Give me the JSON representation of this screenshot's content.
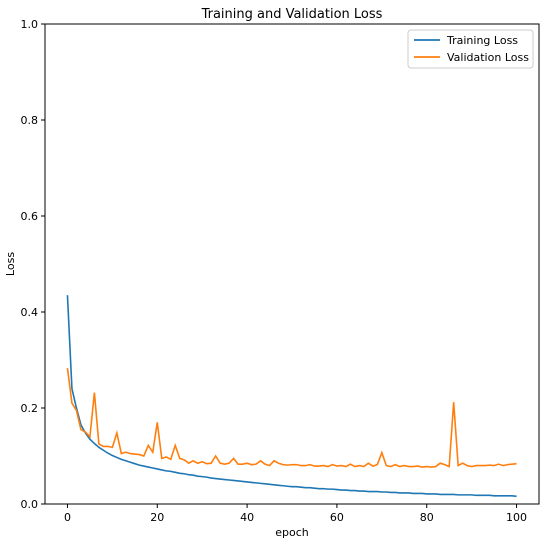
{
  "chart_data": {
    "type": "line",
    "title": "Training and Validation Loss",
    "xlabel": "epoch",
    "ylabel": "Loss",
    "xlim": [
      -5,
      105
    ],
    "ylim": [
      0,
      1.0
    ],
    "xticks": [
      0,
      20,
      40,
      60,
      80,
      100
    ],
    "yticks": [
      0.0,
      0.2,
      0.4,
      0.6,
      0.8,
      1.0
    ],
    "ytick_labels": [
      "0.0",
      "0.2",
      "0.4",
      "0.6",
      "0.8",
      "1.0"
    ],
    "grid": false,
    "legend_position": "top-right",
    "x": [
      0,
      1,
      2,
      3,
      4,
      5,
      6,
      7,
      8,
      9,
      10,
      11,
      12,
      13,
      14,
      15,
      16,
      17,
      18,
      19,
      20,
      21,
      22,
      23,
      24,
      25,
      26,
      27,
      28,
      29,
      30,
      31,
      32,
      33,
      34,
      35,
      36,
      37,
      38,
      39,
      40,
      41,
      42,
      43,
      44,
      45,
      46,
      47,
      48,
      49,
      50,
      51,
      52,
      53,
      54,
      55,
      56,
      57,
      58,
      59,
      60,
      61,
      62,
      63,
      64,
      65,
      66,
      67,
      68,
      69,
      70,
      71,
      72,
      73,
      74,
      75,
      76,
      77,
      78,
      79,
      80,
      81,
      82,
      83,
      84,
      85,
      86,
      87,
      88,
      89,
      90,
      91,
      92,
      93,
      94,
      95,
      96,
      97,
      98,
      99,
      100
    ],
    "series": [
      {
        "name": "Training Loss",
        "color": "#1f77b4",
        "values": [
          0.435,
          0.24,
          0.2,
          0.165,
          0.148,
          0.135,
          0.126,
          0.118,
          0.112,
          0.106,
          0.101,
          0.097,
          0.093,
          0.09,
          0.087,
          0.084,
          0.081,
          0.079,
          0.077,
          0.075,
          0.073,
          0.071,
          0.069,
          0.068,
          0.066,
          0.064,
          0.063,
          0.061,
          0.06,
          0.058,
          0.057,
          0.056,
          0.054,
          0.053,
          0.052,
          0.051,
          0.05,
          0.049,
          0.048,
          0.047,
          0.046,
          0.045,
          0.044,
          0.043,
          0.042,
          0.041,
          0.04,
          0.039,
          0.038,
          0.037,
          0.036,
          0.036,
          0.035,
          0.034,
          0.034,
          0.033,
          0.032,
          0.032,
          0.031,
          0.031,
          0.03,
          0.029,
          0.029,
          0.028,
          0.028,
          0.027,
          0.027,
          0.026,
          0.026,
          0.026,
          0.025,
          0.025,
          0.024,
          0.024,
          0.023,
          0.023,
          0.023,
          0.022,
          0.022,
          0.022,
          0.021,
          0.021,
          0.021,
          0.02,
          0.02,
          0.02,
          0.02,
          0.019,
          0.019,
          0.019,
          0.019,
          0.018,
          0.018,
          0.018,
          0.018,
          0.017,
          0.017,
          0.017,
          0.017,
          0.017,
          0.016
        ]
      },
      {
        "name": "Validation Loss",
        "color": "#ff7f0e",
        "values": [
          0.283,
          0.21,
          0.195,
          0.155,
          0.15,
          0.14,
          0.232,
          0.125,
          0.12,
          0.12,
          0.118,
          0.148,
          0.105,
          0.108,
          0.105,
          0.104,
          0.103,
          0.1,
          0.122,
          0.108,
          0.17,
          0.095,
          0.098,
          0.093,
          0.122,
          0.095,
          0.092,
          0.085,
          0.09,
          0.085,
          0.088,
          0.084,
          0.085,
          0.1,
          0.085,
          0.083,
          0.085,
          0.095,
          0.083,
          0.083,
          0.085,
          0.082,
          0.083,
          0.09,
          0.083,
          0.08,
          0.09,
          0.085,
          0.082,
          0.081,
          0.082,
          0.082,
          0.08,
          0.08,
          0.082,
          0.079,
          0.079,
          0.08,
          0.078,
          0.082,
          0.079,
          0.08,
          0.078,
          0.083,
          0.078,
          0.08,
          0.078,
          0.085,
          0.079,
          0.082,
          0.107,
          0.08,
          0.078,
          0.082,
          0.078,
          0.08,
          0.078,
          0.078,
          0.079,
          0.077,
          0.078,
          0.077,
          0.078,
          0.085,
          0.082,
          0.078,
          0.212,
          0.08,
          0.085,
          0.08,
          0.078,
          0.08,
          0.08,
          0.08,
          0.081,
          0.08,
          0.083,
          0.08,
          0.082,
          0.083,
          0.084
        ]
      }
    ]
  }
}
